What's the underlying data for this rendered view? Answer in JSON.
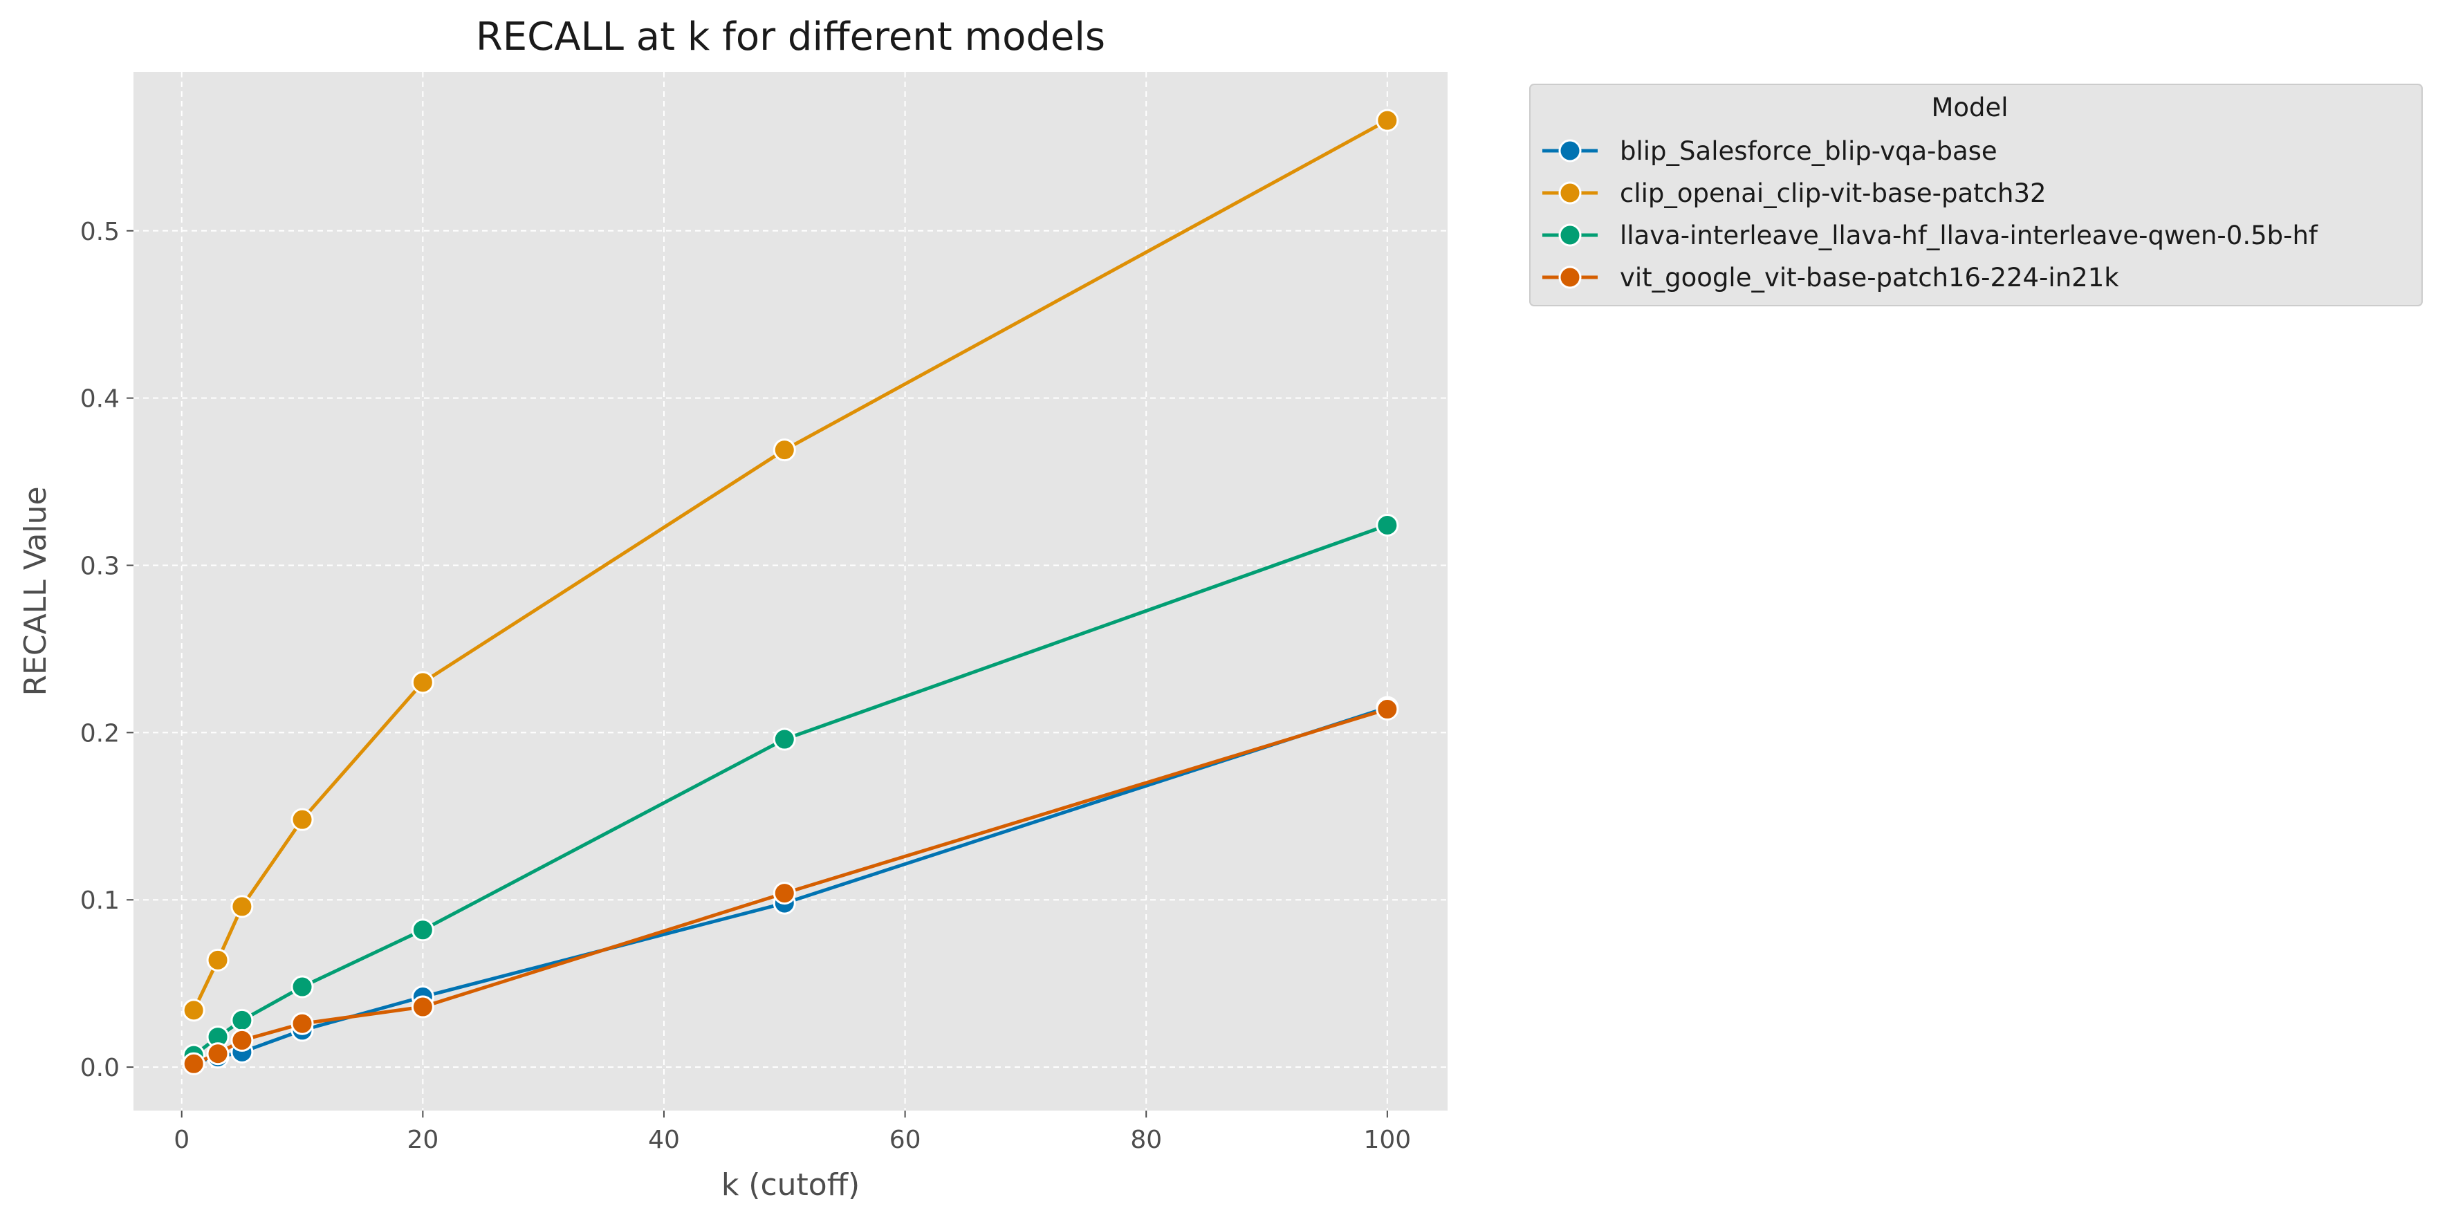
{
  "chart_data": {
    "type": "line",
    "title": "RECALL at k for different models",
    "xlabel": "k (cutoff)",
    "ylabel": "RECALL Value",
    "xlim": [
      -4,
      105
    ],
    "ylim": [
      -0.026,
      0.595
    ],
    "xticks": [
      0,
      20,
      40,
      60,
      80,
      100
    ],
    "xtick_labels": [
      "0",
      "20",
      "40",
      "60",
      "80",
      "100"
    ],
    "yticks": [
      0.0,
      0.1,
      0.2,
      0.3,
      0.4,
      0.5
    ],
    "ytick_labels": [
      "0.0",
      "0.1",
      "0.2",
      "0.3",
      "0.4",
      "0.5"
    ],
    "grid": true,
    "legend_title": "Model",
    "legend_position": "outside-right-top",
    "x": [
      1,
      3,
      5,
      10,
      20,
      50,
      100
    ],
    "series": [
      {
        "name": "blip_Salesforce_blip-vqa-base",
        "color": "#0173b2",
        "values": [
          0.003,
          0.006,
          0.009,
          0.022,
          0.042,
          0.098,
          0.215
        ]
      },
      {
        "name": "clip_openai_clip-vit-base-patch32",
        "color": "#de8f05",
        "values": [
          0.034,
          0.064,
          0.096,
          0.148,
          0.23,
          0.369,
          0.566
        ]
      },
      {
        "name": "llava-interleave_llava-hf_llava-interleave-qwen-0.5b-hf",
        "color": "#029e73",
        "values": [
          0.007,
          0.018,
          0.028,
          0.048,
          0.082,
          0.196,
          0.324
        ]
      },
      {
        "name": "vit_google_vit-base-patch16-224-in21k",
        "color": "#d55e00",
        "values": [
          0.002,
          0.008,
          0.016,
          0.026,
          0.036,
          0.104,
          0.214
        ]
      }
    ]
  }
}
